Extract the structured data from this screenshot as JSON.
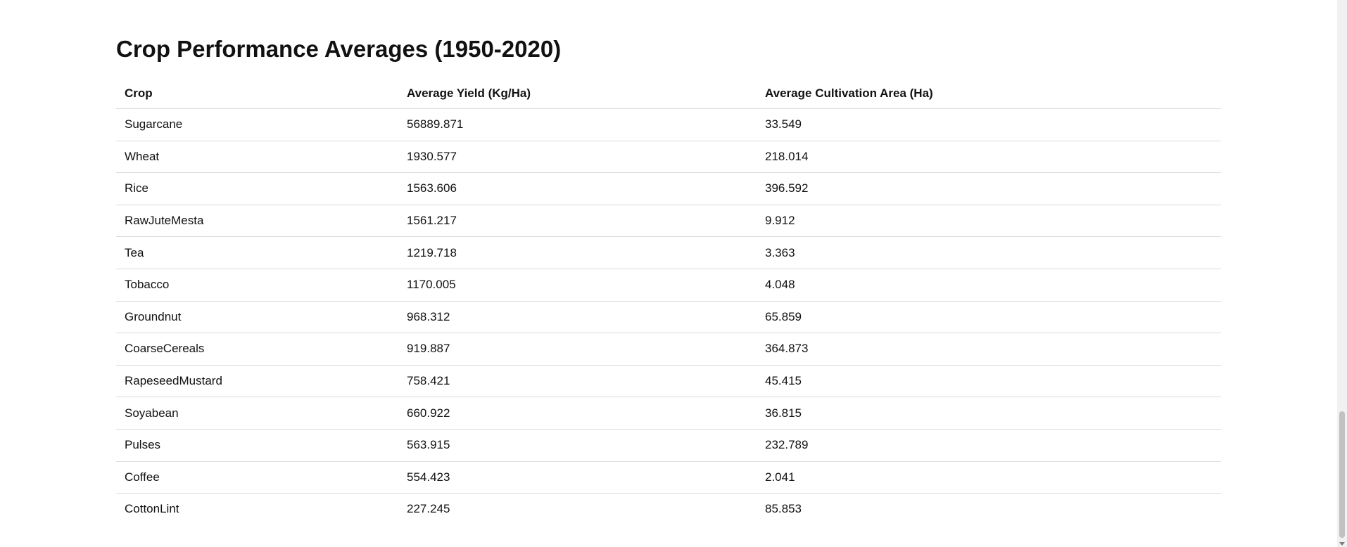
{
  "page": {
    "title": "Crop Performance Averages (1950-2020)"
  },
  "table": {
    "headers": [
      "Crop",
      "Average Yield (Kg/Ha)",
      "Average Cultivation Area (Ha)"
    ],
    "rows": [
      [
        "Sugarcane",
        "56889.871",
        "33.549"
      ],
      [
        "Wheat",
        "1930.577",
        "218.014"
      ],
      [
        "Rice",
        "1563.606",
        "396.592"
      ],
      [
        "RawJuteMesta",
        "1561.217",
        "9.912"
      ],
      [
        "Tea",
        "1219.718",
        "3.363"
      ],
      [
        "Tobacco",
        "1170.005",
        "4.048"
      ],
      [
        "Groundnut",
        "968.312",
        "65.859"
      ],
      [
        "CoarseCereals",
        "919.887",
        "364.873"
      ],
      [
        "RapeseedMustard",
        "758.421",
        "45.415"
      ],
      [
        "Soyabean",
        "660.922",
        "36.815"
      ],
      [
        "Pulses",
        "563.915",
        "232.789"
      ],
      [
        "Coffee",
        "554.423",
        "2.041"
      ],
      [
        "CottonLint",
        "227.245",
        "85.853"
      ]
    ]
  },
  "scrollbar": {
    "position": 0.95
  }
}
